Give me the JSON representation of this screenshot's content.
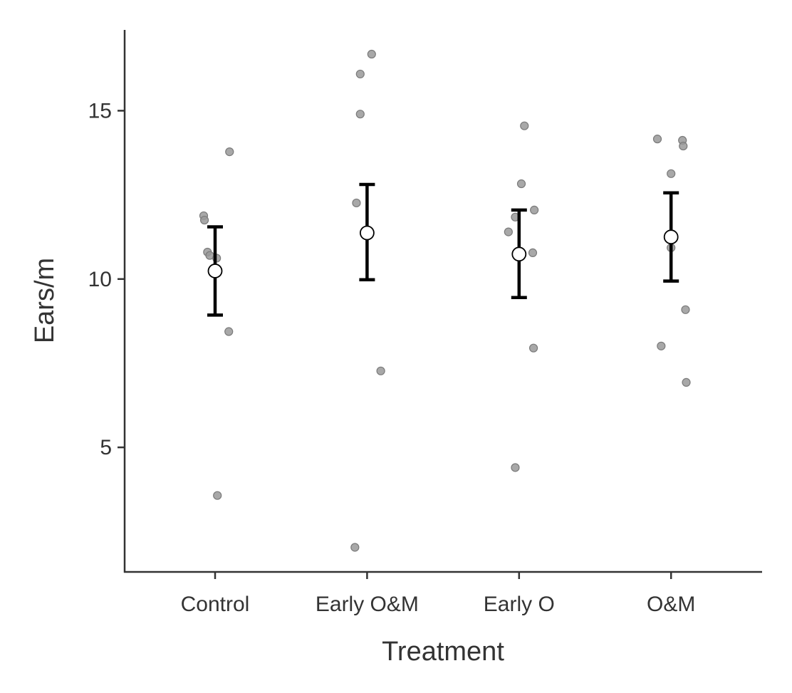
{
  "chart_data": {
    "type": "scatter",
    "title": "",
    "xlabel": "Treatment",
    "ylabel": "Ears/m",
    "ylim": [
      1.3,
      17.4
    ],
    "yticks": [
      5,
      10,
      15
    ],
    "grid": false,
    "categories": [
      "Control",
      "Early O&M",
      "Early O",
      "O&M"
    ],
    "points": [
      {
        "category": "Control",
        "jitter": -0.075,
        "values": [
          11.88
        ]
      },
      {
        "category": "Control",
        "jitter": -0.07,
        "values": [
          11.75
        ]
      },
      {
        "category": "Control",
        "jitter": -0.05,
        "values": [
          10.8
        ]
      },
      {
        "category": "Control",
        "jitter": -0.035,
        "values": [
          10.7
        ]
      },
      {
        "category": "Control",
        "jitter": 0.01,
        "values": [
          10.62
        ]
      },
      {
        "category": "Control",
        "jitter": 0.095,
        "values": [
          13.78
        ]
      },
      {
        "category": "Control",
        "jitter": 0.09,
        "values": [
          8.44
        ]
      },
      {
        "category": "Control",
        "jitter": 0.015,
        "values": [
          3.57
        ]
      },
      {
        "category": "Early O&M",
        "jitter": 0.03,
        "values": [
          16.68
        ]
      },
      {
        "category": "Early O&M",
        "jitter": -0.045,
        "values": [
          16.09
        ]
      },
      {
        "category": "Early O&M",
        "jitter": -0.045,
        "values": [
          14.9
        ]
      },
      {
        "category": "Early O&M",
        "jitter": -0.07,
        "values": [
          12.26
        ]
      },
      {
        "category": "Early O&M",
        "jitter": 0.09,
        "values": [
          7.27
        ]
      },
      {
        "category": "Early O&M",
        "jitter": -0.08,
        "values": [
          2.03
        ]
      },
      {
        "category": "Early O",
        "jitter": 0.035,
        "values": [
          14.55
        ]
      },
      {
        "category": "Early O",
        "jitter": 0.015,
        "values": [
          12.83
        ]
      },
      {
        "category": "Early O",
        "jitter": 0.1,
        "values": [
          12.05
        ]
      },
      {
        "category": "Early O",
        "jitter": -0.025,
        "values": [
          11.84
        ]
      },
      {
        "category": "Early O",
        "jitter": -0.07,
        "values": [
          11.4
        ]
      },
      {
        "category": "Early O",
        "jitter": 0.09,
        "values": [
          10.78
        ]
      },
      {
        "category": "Early O",
        "jitter": 0.095,
        "values": [
          7.95
        ]
      },
      {
        "category": "Early O",
        "jitter": -0.025,
        "values": [
          4.4
        ]
      },
      {
        "category": "O&M",
        "jitter": -0.09,
        "values": [
          14.16
        ]
      },
      {
        "category": "O&M",
        "jitter": 0.075,
        "values": [
          14.12
        ]
      },
      {
        "category": "O&M",
        "jitter": 0.08,
        "values": [
          13.95
        ]
      },
      {
        "category": "O&M",
        "jitter": 0.0,
        "values": [
          13.13
        ]
      },
      {
        "category": "O&M",
        "jitter": 0.0,
        "values": [
          10.93
        ]
      },
      {
        "category": "O&M",
        "jitter": 0.095,
        "values": [
          9.09
        ]
      },
      {
        "category": "O&M",
        "jitter": -0.065,
        "values": [
          8.01
        ]
      },
      {
        "category": "O&M",
        "jitter": 0.1,
        "values": [
          6.93
        ]
      }
    ],
    "summary": [
      {
        "category": "Control",
        "mean": 10.24,
        "lower": 8.93,
        "upper": 11.55
      },
      {
        "category": "Early O&M",
        "mean": 11.37,
        "lower": 9.98,
        "upper": 12.81
      },
      {
        "category": "Early O",
        "mean": 10.74,
        "lower": 9.45,
        "upper": 12.05
      },
      {
        "category": "O&M",
        "mean": 11.25,
        "lower": 9.94,
        "upper": 12.56
      }
    ],
    "colors": {
      "point": "#999999",
      "point_stroke": "#7a7a7a",
      "error": "#000000",
      "mean_fill": "#ffffff",
      "axis": "#333333"
    }
  }
}
